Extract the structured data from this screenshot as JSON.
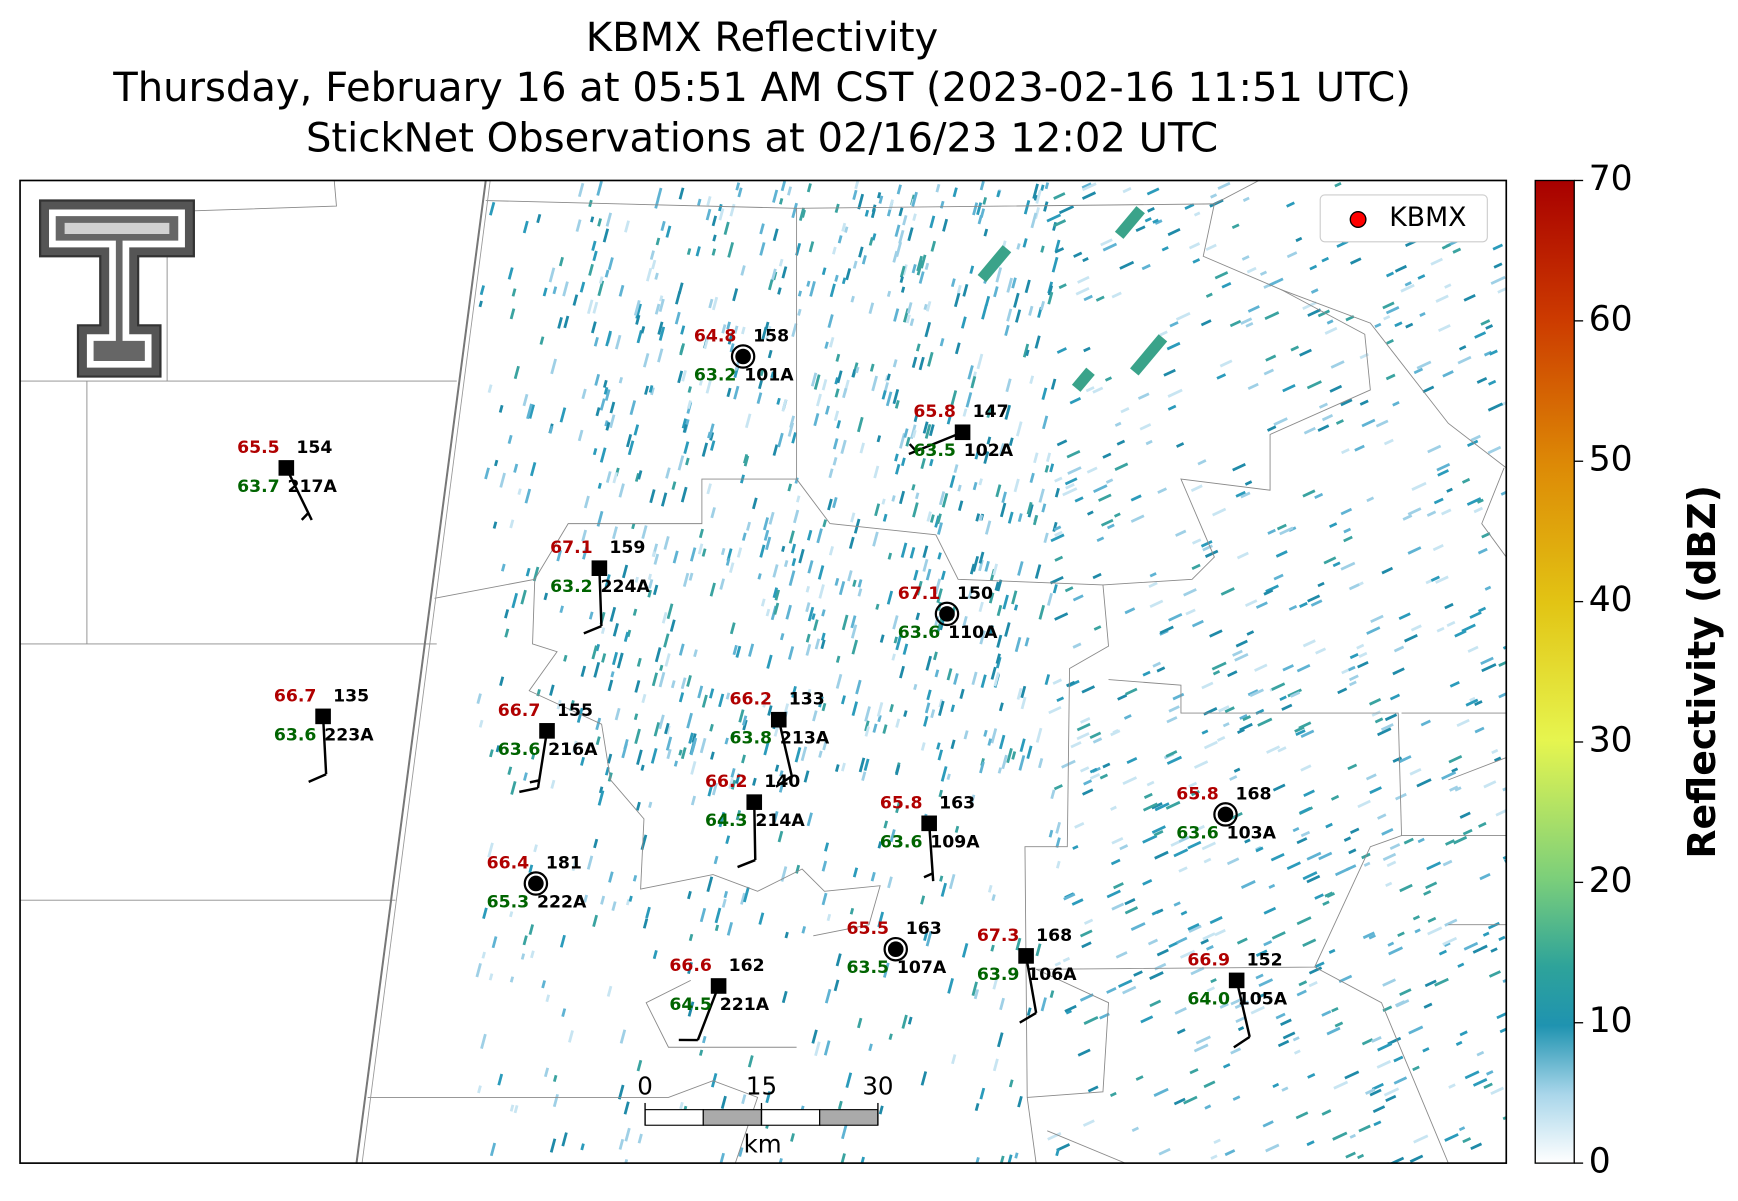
{
  "title_lines": [
    "KBMX Reflectivity",
    "Thursday, February 16 at 05:51 AM CST (2023-02-16 11:51 UTC)",
    "StickNet Observations at 02/16/23 12:02 UTC"
  ],
  "legend": {
    "label": "KBMX",
    "color": "#ff0000"
  },
  "colorbar": {
    "label": "Reflectivity (dBZ)",
    "clim": [
      0,
      70
    ],
    "ticks": [
      0,
      10,
      20,
      30,
      40,
      50,
      60,
      70
    ]
  },
  "scale_bar": {
    "ticks": [
      0,
      15,
      30
    ],
    "unit": "km"
  },
  "stations": [
    {
      "id": "101A",
      "temperature": "64.8",
      "dewpoint": "63.2",
      "pressure": "158",
      "wind_dir": null,
      "wind_speed": 0
    },
    {
      "id": "102A",
      "temperature": "65.8",
      "dewpoint": "63.5",
      "pressure": "147",
      "wind_dir": 248,
      "wind_speed": 5
    },
    {
      "id": "217A",
      "temperature": "65.5",
      "dewpoint": "63.7",
      "pressure": "154",
      "wind_dir": 154,
      "wind_speed": 5
    },
    {
      "id": "224A",
      "temperature": "67.1",
      "dewpoint": "63.2",
      "pressure": "159",
      "wind_dir": 178,
      "wind_speed": 10
    },
    {
      "id": "110A",
      "temperature": "67.1",
      "dewpoint": "63.6",
      "pressure": "150",
      "wind_dir": null,
      "wind_speed": 0
    },
    {
      "id": "223A",
      "temperature": "66.7",
      "dewpoint": "63.6",
      "pressure": "135",
      "wind_dir": 177,
      "wind_speed": 10
    },
    {
      "id": "216A",
      "temperature": "66.7",
      "dewpoint": "63.6",
      "pressure": "155",
      "wind_dir": 189,
      "wind_speed": 15
    },
    {
      "id": "213A",
      "temperature": "66.2",
      "dewpoint": "63.8",
      "pressure": "133",
      "wind_dir": 167,
      "wind_speed": 10
    },
    {
      "id": "214A",
      "temperature": "66.2",
      "dewpoint": "64.3",
      "pressure": "140",
      "wind_dir": 179,
      "wind_speed": 10
    },
    {
      "id": "109A",
      "temperature": "65.8",
      "dewpoint": "63.6",
      "pressure": "163",
      "wind_dir": 176,
      "wind_speed": 5
    },
    {
      "id": "103A",
      "temperature": "65.8",
      "dewpoint": "63.6",
      "pressure": "168",
      "wind_dir": null,
      "wind_speed": 0
    },
    {
      "id": "222A",
      "temperature": "66.4",
      "dewpoint": "65.3",
      "pressure": "181",
      "wind_dir": null,
      "wind_speed": 0
    },
    {
      "id": "107A",
      "temperature": "65.5",
      "dewpoint": "63.5",
      "pressure": "163",
      "wind_dir": null,
      "wind_speed": 0
    },
    {
      "id": "106A",
      "temperature": "67.3",
      "dewpoint": "63.9",
      "pressure": "168",
      "wind_dir": 170,
      "wind_speed": 10
    },
    {
      "id": "221A",
      "temperature": "66.6",
      "dewpoint": "64.5",
      "pressure": "162",
      "wind_dir": 201,
      "wind_speed": 10
    },
    {
      "id": "105A",
      "temperature": "66.9",
      "dewpoint": "64.0",
      "pressure": "152",
      "wind_dir": 167,
      "wind_speed": 10
    }
  ]
}
